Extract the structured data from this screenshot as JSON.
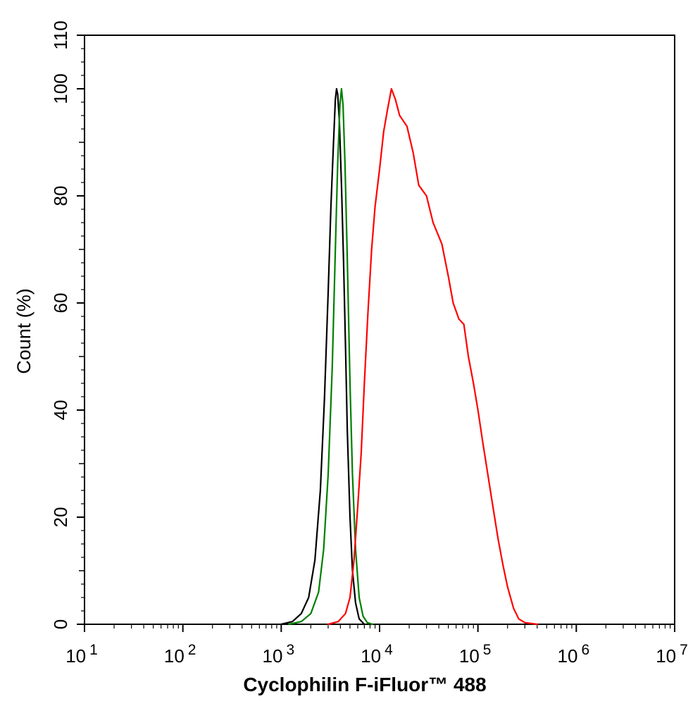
{
  "chart_data": {
    "type": "line",
    "title": "",
    "xlabel": "Cyclophilin F-iFluor™ 488",
    "ylabel": "Count  (%)",
    "xscale": "log",
    "xlim": [
      10,
      10000000
    ],
    "ylim": [
      0,
      110
    ],
    "x_ticks": [
      {
        "value": 10,
        "base": "10",
        "exp": "1"
      },
      {
        "value": 100,
        "base": "10",
        "exp": "2"
      },
      {
        "value": 1000,
        "base": "10",
        "exp": "3"
      },
      {
        "value": 10000,
        "base": "10",
        "exp": "4"
      },
      {
        "value": 100000,
        "base": "10",
        "exp": "5"
      },
      {
        "value": 1000000,
        "base": "10",
        "exp": "6"
      },
      {
        "value": 10000000,
        "base": "10",
        "exp": "7"
      }
    ],
    "y_ticks": [
      {
        "value": 0,
        "label": "0"
      },
      {
        "value": 20,
        "label": "20"
      },
      {
        "value": 40,
        "label": "40"
      },
      {
        "value": 60,
        "label": "60"
      },
      {
        "value": 80,
        "label": "80"
      },
      {
        "value": 100,
        "label": "100"
      },
      {
        "value": 110,
        "label": "110"
      }
    ],
    "grid": false,
    "legend": "none",
    "series": [
      {
        "color": "#000000",
        "points": [
          [
            1000,
            0
          ],
          [
            1300,
            0.5
          ],
          [
            1600,
            2
          ],
          [
            1900,
            5
          ],
          [
            2200,
            12
          ],
          [
            2500,
            25
          ],
          [
            2750,
            42
          ],
          [
            3000,
            62
          ],
          [
            3200,
            78
          ],
          [
            3400,
            90
          ],
          [
            3550,
            98
          ],
          [
            3650,
            100
          ],
          [
            3750,
            99
          ],
          [
            3900,
            94
          ],
          [
            4100,
            82
          ],
          [
            4300,
            68
          ],
          [
            4500,
            52
          ],
          [
            4700,
            36
          ],
          [
            5000,
            20
          ],
          [
            5300,
            10
          ],
          [
            5700,
            4
          ],
          [
            6200,
            1
          ],
          [
            7000,
            0
          ]
        ]
      },
      {
        "color": "#008000",
        "points": [
          [
            1200,
            0
          ],
          [
            1600,
            0.5
          ],
          [
            2000,
            2
          ],
          [
            2400,
            6
          ],
          [
            2700,
            14
          ],
          [
            3000,
            28
          ],
          [
            3300,
            48
          ],
          [
            3550,
            70
          ],
          [
            3750,
            86
          ],
          [
            3950,
            97
          ],
          [
            4100,
            100
          ],
          [
            4250,
            97
          ],
          [
            4450,
            86
          ],
          [
            4700,
            68
          ],
          [
            5000,
            45
          ],
          [
            5300,
            28
          ],
          [
            5700,
            14
          ],
          [
            6200,
            5
          ],
          [
            6800,
            1.5
          ],
          [
            7500,
            0.3
          ],
          [
            8500,
            0
          ]
        ]
      },
      {
        "color": "#ff0000",
        "points": [
          [
            3000,
            0
          ],
          [
            3800,
            0.5
          ],
          [
            4500,
            2
          ],
          [
            5000,
            5
          ],
          [
            5500,
            12
          ],
          [
            6000,
            22
          ],
          [
            6500,
            32
          ],
          [
            7000,
            45
          ],
          [
            7600,
            58
          ],
          [
            8300,
            70
          ],
          [
            9000,
            78
          ],
          [
            10000,
            85
          ],
          [
            11000,
            92
          ],
          [
            12000,
            96
          ],
          [
            13200,
            100
          ],
          [
            14500,
            98
          ],
          [
            16000,
            95
          ],
          [
            19000,
            93
          ],
          [
            22000,
            88
          ],
          [
            25000,
            82
          ],
          [
            30000,
            80
          ],
          [
            35000,
            75
          ],
          [
            43000,
            71
          ],
          [
            50000,
            65
          ],
          [
            56000,
            60
          ],
          [
            64000,
            57
          ],
          [
            72000,
            56
          ],
          [
            80000,
            50
          ],
          [
            90000,
            45
          ],
          [
            100000,
            40
          ],
          [
            112000,
            34
          ],
          [
            126000,
            28
          ],
          [
            142000,
            22
          ],
          [
            160000,
            16
          ],
          [
            180000,
            11
          ],
          [
            200000,
            7
          ],
          [
            230000,
            3
          ],
          [
            260000,
            1
          ],
          [
            300000,
            0.3
          ],
          [
            400000,
            0
          ]
        ]
      }
    ]
  }
}
